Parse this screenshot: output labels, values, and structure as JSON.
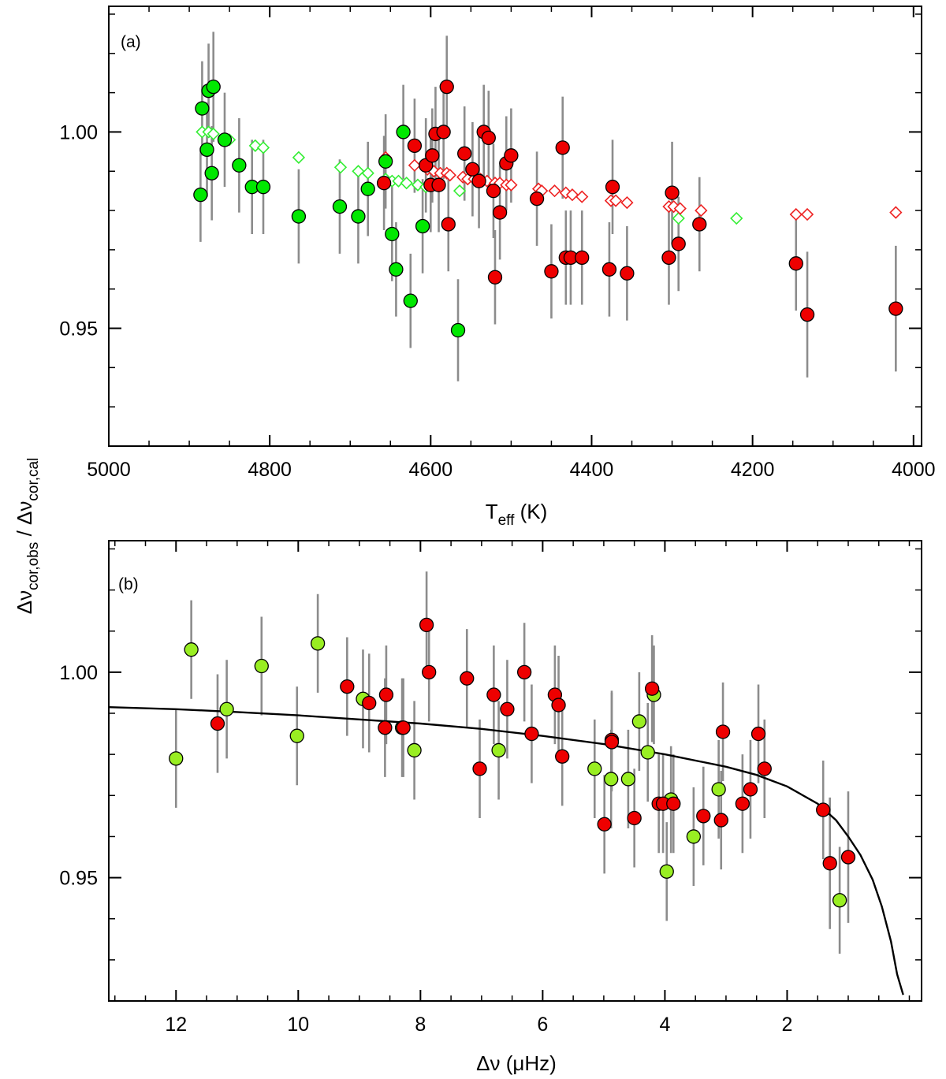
{
  "chart_data": [
    {
      "panel": "(a)",
      "type": "scatter",
      "xlabel": {
        "base": "T",
        "sub": "eff",
        "unit": " (K)"
      },
      "ylabel": "Δν_cor,obs / Δν_cor,cal",
      "xlim": [
        5000,
        3990
      ],
      "ylim": [
        0.92,
        1.032
      ],
      "xticks": [
        5000,
        4800,
        4600,
        4400,
        4200,
        4000
      ],
      "xtick_labels": [
        "5000",
        "4800",
        "4600",
        "4400",
        "4200",
        "4000"
      ],
      "yticks": [
        1.0,
        0.95
      ],
      "ytick_labels": [
        "1.00",
        "0.95"
      ],
      "colors": {
        "green": "#00e800",
        "red": "#ee0000",
        "err": "#8c8c8c",
        "open_green": "#33ee33",
        "open_red": "#ee2222"
      },
      "series": [
        {
          "name": "observed (green)",
          "marker": "filled-circle",
          "color": "green",
          "x": [
            4886,
            4884,
            4878,
            4876,
            4872,
            4870,
            4856,
            4838,
            4822,
            4808,
            4764,
            4713,
            4690,
            4678,
            4656,
            4648,
            4634,
            4625,
            4643,
            4610,
            4566
          ],
          "y": [
            0.984,
            1.006,
            0.9955,
            1.0105,
            0.9895,
            1.0115,
            0.998,
            0.9915,
            0.986,
            0.986,
            0.9785,
            0.981,
            0.9785,
            0.9855,
            0.9925,
            0.974,
            1.0,
            0.957,
            0.965,
            0.976,
            0.9495
          ],
          "err": [
            0.012,
            0.012,
            0.012,
            0.012,
            0.012,
            0.014,
            0.012,
            0.012,
            0.012,
            0.012,
            0.012,
            0.012,
            0.012,
            0.012,
            0.012,
            0.012,
            0.012,
            0.012,
            0.012,
            0.012,
            0.013
          ]
        },
        {
          "name": "observed (red)",
          "marker": "filled-circle",
          "color": "red",
          "x": [
            4658,
            4620,
            4606,
            4600,
            4598,
            4594,
            4590,
            4584,
            4580,
            4578,
            4558,
            4548,
            4540,
            4534,
            4528,
            4522,
            4520,
            4514,
            4506,
            4500,
            4468,
            4450,
            4436,
            4432,
            4426,
            4412,
            4378,
            4374,
            4356,
            4304,
            4300,
            4292,
            4266,
            4146,
            4132,
            4022
          ],
          "y": [
            0.987,
            0.9965,
            0.9915,
            0.9865,
            0.994,
            0.9995,
            0.9865,
            1.0,
            1.0115,
            0.9765,
            0.9945,
            0.9905,
            0.9875,
            1.0,
            0.9985,
            0.985,
            0.963,
            0.9795,
            0.992,
            0.994,
            0.983,
            0.9645,
            0.996,
            0.968,
            0.968,
            0.968,
            0.965,
            0.986,
            0.964,
            0.968,
            0.9845,
            0.9715,
            0.9765,
            0.9665,
            0.9535,
            0.955
          ],
          "err": [
            0.012,
            0.012,
            0.012,
            0.012,
            0.012,
            0.012,
            0.012,
            0.012,
            0.013,
            0.012,
            0.012,
            0.012,
            0.012,
            0.012,
            0.012,
            0.012,
            0.012,
            0.012,
            0.012,
            0.012,
            0.012,
            0.012,
            0.013,
            0.012,
            0.012,
            0.012,
            0.012,
            0.012,
            0.012,
            0.012,
            0.013,
            0.012,
            0.012,
            0.012,
            0.016,
            0.016
          ]
        },
        {
          "name": "calculated (green)",
          "marker": "open-diamond",
          "color": "open_green",
          "x": [
            4884,
            4876,
            4870,
            4850,
            4818,
            4808,
            4764,
            4712,
            4690,
            4678,
            4656,
            4648,
            4640,
            4630,
            4616,
            4606,
            4564,
            4292,
            4220
          ],
          "y": [
            1.0,
            1.0,
            0.9995,
            0.998,
            0.9965,
            0.996,
            0.9935,
            0.991,
            0.99,
            0.9895,
            0.988,
            0.9875,
            0.9875,
            0.987,
            0.9865,
            0.986,
            0.985,
            0.978,
            0.978
          ]
        },
        {
          "name": "calculated (red)",
          "marker": "open-diamond",
          "color": "open_red",
          "x": [
            4656,
            4620,
            4604,
            4596,
            4588,
            4580,
            4576,
            4560,
            4554,
            4546,
            4538,
            4530,
            4520,
            4514,
            4506,
            4500,
            4466,
            4462,
            4446,
            4432,
            4424,
            4412,
            4376,
            4370,
            4356,
            4304,
            4298,
            4290,
            4264,
            4146,
            4132,
            4022
          ],
          "y": [
            0.9935,
            0.9915,
            0.9905,
            0.99,
            0.9895,
            0.9895,
            0.989,
            0.9885,
            0.988,
            0.988,
            0.988,
            0.9875,
            0.987,
            0.987,
            0.9865,
            0.9865,
            0.9855,
            0.985,
            0.985,
            0.9845,
            0.984,
            0.9835,
            0.9825,
            0.9825,
            0.982,
            0.981,
            0.981,
            0.9805,
            0.98,
            0.979,
            0.979,
            0.9795
          ]
        }
      ]
    },
    {
      "panel": "(b)",
      "type": "scatter",
      "xlabel": {
        "base": "Δν",
        "unit": " (μHz)"
      },
      "xlim": [
        13.1,
        -0.2
      ],
      "ylim": [
        0.92,
        1.032
      ],
      "xticks": [
        12,
        10,
        8,
        6,
        4,
        2
      ],
      "xtick_labels": [
        "12",
        "10",
        "8",
        "6",
        "4",
        "2"
      ],
      "yticks": [
        1.0,
        0.95
      ],
      "ytick_labels": [
        "1.00",
        "0.95"
      ],
      "colors": {
        "lightgreen": "#99ee22",
        "red": "#ee0000",
        "err": "#8c8c8c",
        "curve": "#000000"
      },
      "series": [
        {
          "name": "observed (light green)",
          "marker": "filled-circle",
          "color": "lightgreen",
          "x": [
            12.0,
            11.75,
            11.17,
            10.6,
            10.02,
            9.68,
            8.94,
            8.3,
            8.1,
            6.72,
            5.15,
            4.88,
            4.6,
            4.42,
            4.28,
            4.18,
            3.97,
            3.9,
            3.53,
            3.12,
            1.14
          ],
          "y": [
            0.979,
            1.0055,
            0.991,
            1.0015,
            0.9845,
            1.007,
            0.9935,
            0.9865,
            0.981,
            0.981,
            0.9765,
            0.974,
            0.974,
            0.988,
            0.9805,
            0.9945,
            0.9515,
            0.969,
            0.96,
            0.9715,
            0.9445
          ],
          "err": [
            0.012,
            0.012,
            0.012,
            0.012,
            0.012,
            0.012,
            0.012,
            0.012,
            0.012,
            0.012,
            0.012,
            0.012,
            0.012,
            0.012,
            0.012,
            0.012,
            0.012,
            0.013,
            0.012,
            0.012,
            0.013
          ]
        },
        {
          "name": "observed (red)",
          "marker": "filled-circle",
          "color": "red",
          "x": [
            11.32,
            9.2,
            8.84,
            8.58,
            8.56,
            8.28,
            7.9,
            7.86,
            7.24,
            7.03,
            6.8,
            6.58,
            6.3,
            6.18,
            5.8,
            5.74,
            5.68,
            4.99,
            4.87,
            4.87,
            4.5,
            4.21,
            4.1,
            4.03,
            3.86,
            3.37,
            3.08,
            3.05,
            2.73,
            2.6,
            2.47,
            2.37,
            1.41,
            1.3,
            1.0
          ],
          "y": [
            0.9875,
            0.9965,
            0.9925,
            0.9865,
            0.9945,
            0.9865,
            1.0115,
            1.0,
            0.9985,
            0.9765,
            0.9945,
            0.991,
            1.0,
            0.985,
            0.9945,
            0.992,
            0.9795,
            0.963,
            0.9835,
            0.983,
            0.9645,
            0.996,
            0.968,
            0.968,
            0.968,
            0.965,
            0.964,
            0.9855,
            0.968,
            0.9715,
            0.985,
            0.9765,
            0.9665,
            0.9535,
            0.955
          ],
          "err": [
            0.012,
            0.012,
            0.012,
            0.012,
            0.012,
            0.012,
            0.013,
            0.012,
            0.012,
            0.012,
            0.012,
            0.012,
            0.012,
            0.012,
            0.012,
            0.012,
            0.012,
            0.012,
            0.012,
            0.012,
            0.012,
            0.013,
            0.012,
            0.012,
            0.012,
            0.012,
            0.012,
            0.012,
            0.012,
            0.012,
            0.012,
            0.012,
            0.012,
            0.016,
            0.016
          ]
        },
        {
          "name": "fit",
          "marker": "line",
          "color": "curve",
          "x": [
            13.1,
            12.0,
            11.0,
            10.0,
            9.0,
            8.0,
            7.0,
            6.0,
            5.0,
            4.0,
            3.0,
            2.5,
            2.0,
            1.5,
            1.2,
            1.0,
            0.8,
            0.6,
            0.45,
            0.3,
            0.2,
            0.1
          ],
          "y": [
            0.9915,
            0.991,
            0.9903,
            0.9895,
            0.9885,
            0.9875,
            0.9862,
            0.9845,
            0.9825,
            0.98,
            0.977,
            0.975,
            0.9722,
            0.968,
            0.964,
            0.96,
            0.9555,
            0.9495,
            0.943,
            0.9345,
            0.9265,
            0.9215
          ]
        }
      ]
    }
  ],
  "shared_ylabel": {
    "base_a": "Δν",
    "sub_a": "cor,obs",
    "sep": " / ",
    "base_b": "Δν",
    "sub_b": "cor,cal"
  }
}
